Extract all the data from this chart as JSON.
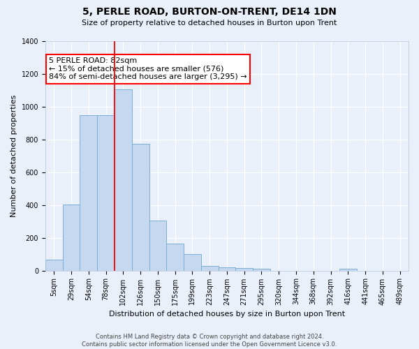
{
  "title": "5, PERLE ROAD, BURTON-ON-TRENT, DE14 1DN",
  "subtitle": "Size of property relative to detached houses in Burton upon Trent",
  "xlabel": "Distribution of detached houses by size in Burton upon Trent",
  "ylabel": "Number of detached properties",
  "footer1": "Contains HM Land Registry data © Crown copyright and database right 2024.",
  "footer2": "Contains public sector information licensed under the Open Government Licence v3.0.",
  "bar_labels": [
    "5sqm",
    "29sqm",
    "54sqm",
    "78sqm",
    "102sqm",
    "126sqm",
    "150sqm",
    "175sqm",
    "199sqm",
    "223sqm",
    "247sqm",
    "271sqm",
    "295sqm",
    "320sqm",
    "344sqm",
    "368sqm",
    "392sqm",
    "416sqm",
    "441sqm",
    "465sqm",
    "489sqm"
  ],
  "bar_values": [
    65,
    405,
    950,
    950,
    1105,
    775,
    305,
    165,
    100,
    30,
    20,
    15,
    10,
    0,
    0,
    0,
    0,
    12,
    0,
    0,
    0
  ],
  "bar_color": "#c5d8f0",
  "bar_edge_color": "#7bafd4",
  "ylim": [
    0,
    1400
  ],
  "yticks": [
    0,
    200,
    400,
    600,
    800,
    1000,
    1200,
    1400
  ],
  "annotation_line1": "5 PERLE ROAD: 82sqm",
  "annotation_line2": "← 15% of detached houses are smaller (576)",
  "annotation_line3": "84% of semi-detached houses are larger (3,295) →",
  "red_line_bar_index": 4,
  "background_color": "#eaf0fa",
  "grid_color": "#d8e4f0",
  "title_fontsize": 10,
  "subtitle_fontsize": 8,
  "ylabel_fontsize": 8,
  "xlabel_fontsize": 8,
  "tick_fontsize": 7,
  "annot_fontsize": 8
}
